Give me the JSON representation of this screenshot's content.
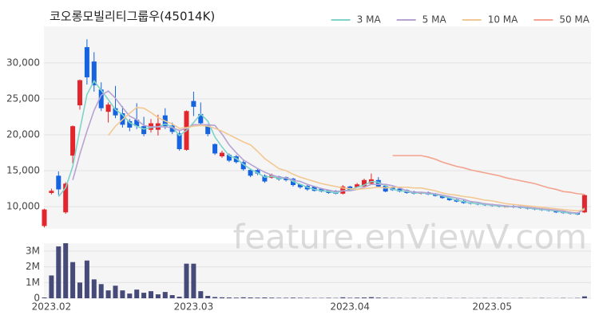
{
  "chart_data": {
    "type": "candlestick",
    "title": "코오롱모빌리티그룹우(45014K)",
    "watermark": "feature.enViewV.com",
    "up_color": "#e3262d",
    "down_color": "#1563df",
    "grid": true,
    "legend": "top-right",
    "categories": [
      null,
      "2023.02",
      null,
      null,
      null,
      null,
      null,
      null,
      null,
      null,
      null,
      null,
      null,
      null,
      null,
      null,
      null,
      null,
      null,
      null,
      null,
      "2023.03",
      null,
      null,
      null,
      null,
      null,
      null,
      null,
      null,
      null,
      null,
      null,
      null,
      null,
      null,
      null,
      null,
      null,
      null,
      null,
      null,
      null,
      "2023.04",
      null,
      null,
      null,
      null,
      null,
      null,
      null,
      null,
      null,
      null,
      null,
      null,
      null,
      null,
      null,
      null,
      null,
      null,
      null,
      "2023.05",
      null,
      null,
      null,
      null,
      null,
      null,
      null,
      null,
      null,
      null,
      null,
      null,
      null
    ],
    "open": [
      7300,
      11900,
      14300,
      9200,
      17100,
      24100,
      32200,
      30200,
      26300,
      23200,
      23700,
      23000,
      21900,
      22100,
      21200,
      20700,
      20700,
      22700,
      21300,
      20200,
      17900,
      24700,
      22900,
      21400,
      18700,
      17000,
      17200,
      17000,
      16200,
      15100,
      15100,
      14300,
      14000,
      14200,
      14100,
      13900,
      13100,
      12900,
      12800,
      12500,
      12300,
      12200,
      11800,
      12800,
      12700,
      12800,
      13200,
      13700,
      12900,
      12700,
      12500,
      12300,
      12100,
      11800,
      12000,
      11800,
      11500,
      11200,
      11000,
      10800,
      10600,
      10500,
      10400,
      10300,
      10200,
      9900,
      10100,
      10000,
      9900,
      9800,
      9700,
      9600,
      9500,
      9300,
      9200,
      9100,
      9200
    ],
    "high": [
      9700,
      12500,
      14900,
      13400,
      21300,
      27700,
      33300,
      31500,
      27300,
      24500,
      26800,
      24000,
      22200,
      24400,
      22500,
      22200,
      22800,
      23700,
      21700,
      20500,
      23400,
      26000,
      24500,
      21500,
      18800,
      17800,
      17400,
      17200,
      16400,
      15300,
      15300,
      14500,
      14600,
      14300,
      14200,
      14000,
      13200,
      13000,
      12900,
      12600,
      12400,
      12300,
      13000,
      12900,
      13300,
      13900,
      14600,
      14100,
      13000,
      12800,
      12600,
      12400,
      12200,
      12000,
      12100,
      11900,
      11600,
      11300,
      11100,
      10900,
      10700,
      10600,
      10500,
      10400,
      10300,
      10100,
      10200,
      10100,
      10000,
      9900,
      9800,
      9700,
      9600,
      9400,
      9300,
      9200,
      11700
    ],
    "low": [
      7100,
      11700,
      11600,
      9000,
      16000,
      23500,
      27000,
      26000,
      23300,
      21700,
      22300,
      21000,
      20500,
      20800,
      19800,
      20300,
      19900,
      20800,
      20100,
      17800,
      17800,
      22600,
      21300,
      19800,
      17200,
      16800,
      16200,
      16000,
      15000,
      14100,
      14400,
      13300,
      13900,
      13600,
      13500,
      12800,
      12500,
      12200,
      12100,
      12000,
      11800,
      11700,
      11700,
      12200,
      12600,
      12700,
      13100,
      12700,
      12000,
      12200,
      12000,
      11800,
      11700,
      11700,
      11600,
      11400,
      11100,
      10800,
      10600,
      10400,
      10300,
      10200,
      10100,
      10000,
      9900,
      9900,
      9800,
      9700,
      9600,
      9500,
      9400,
      9300,
      9100,
      9000,
      8900,
      8800,
      9100
    ],
    "close": [
      9600,
      12200,
      12400,
      13200,
      21200,
      27600,
      28000,
      26900,
      23700,
      24200,
      22700,
      21400,
      21000,
      21200,
      20100,
      21600,
      21600,
      21200,
      20400,
      18000,
      23300,
      23900,
      21600,
      20100,
      17400,
      17500,
      16400,
      16200,
      15200,
      14300,
      14600,
      13500,
      14400,
      13800,
      13700,
      13000,
      12700,
      12400,
      12200,
      12100,
      11900,
      11800,
      12800,
      12300,
      13100,
      13700,
      13800,
      12800,
      12100,
      12300,
      12100,
      11900,
      11800,
      11900,
      11700,
      11500,
      11200,
      10900,
      10700,
      10500,
      10400,
      10300,
      10200,
      10100,
      10000,
      10000,
      9900,
      9800,
      9700,
      9600,
      9500,
      9400,
      9200,
      9100,
      9000,
      8900,
      11600
    ],
    "lines": [
      {
        "name": "3 MA",
        "color": "#7fd3c9",
        "values": [
          null,
          null,
          11400,
          12600,
          15600,
          20700,
          25600,
          27500,
          26200,
          24900,
          23500,
          22800,
          21700,
          21200,
          20800,
          21000,
          21100,
          21500,
          21100,
          19900,
          20600,
          21700,
          22900,
          21900,
          19700,
          18300,
          17100,
          16700,
          15900,
          15200,
          14700,
          14100,
          14200,
          13900,
          14000,
          13500,
          13100,
          12700,
          12400,
          12200,
          12100,
          11900,
          12200,
          12300,
          12700,
          13000,
          13500,
          13400,
          12900,
          12400,
          12200,
          12100,
          11900,
          11900,
          11800,
          11700,
          11500,
          11200,
          10900,
          10700,
          10500,
          10400,
          10300,
          10200,
          10100,
          10000,
          10000,
          9900,
          9800,
          9700,
          9600,
          9500,
          9400,
          9200,
          9100,
          9000,
          9800
        ]
      },
      {
        "name": "5 MA",
        "color": "#b6a3d4",
        "values": [
          null,
          null,
          null,
          null,
          13700,
          17300,
          20500,
          23400,
          25500,
          26100,
          25100,
          23800,
          22600,
          22100,
          21300,
          21100,
          21100,
          21100,
          21000,
          20600,
          20900,
          21400,
          21400,
          21400,
          21300,
          20100,
          18600,
          17500,
          16500,
          15900,
          15300,
          14800,
          14400,
          14100,
          14000,
          13700,
          13500,
          13100,
          12800,
          12500,
          12300,
          12100,
          12200,
          12200,
          12400,
          12700,
          13100,
          13100,
          13100,
          12900,
          12600,
          12200,
          12000,
          12000,
          11900,
          11800,
          11600,
          11400,
          11200,
          11000,
          10700,
          10600,
          10400,
          10300,
          10200,
          10100,
          10000,
          10000,
          9900,
          9800,
          9700,
          9600,
          9500,
          9400,
          9200,
          9100,
          9600
        ]
      },
      {
        "name": "10 MA",
        "color": "#f2c993",
        "values": [
          null,
          null,
          null,
          null,
          null,
          null,
          null,
          null,
          null,
          19900,
          21200,
          22100,
          23000,
          23800,
          23700,
          23100,
          22400,
          21900,
          21500,
          20900,
          21000,
          21200,
          21300,
          21200,
          20900,
          20500,
          20000,
          19500,
          19000,
          18600,
          17700,
          16700,
          16000,
          15300,
          15000,
          14500,
          14100,
          13800,
          13500,
          13200,
          13000,
          12800,
          12600,
          12500,
          12400,
          12500,
          12600,
          12700,
          12600,
          12700,
          12700,
          12700,
          12600,
          12600,
          12400,
          12200,
          11900,
          11700,
          11600,
          11400,
          11300,
          11100,
          10900,
          10800,
          10600,
          10400,
          10300,
          10200,
          10100,
          10000,
          9900,
          9800,
          9700,
          9600,
          9500,
          9400,
          9600
        ]
      },
      {
        "name": "50 MA",
        "color": "#f3a38f",
        "values": [
          null,
          null,
          null,
          null,
          null,
          null,
          null,
          null,
          null,
          null,
          null,
          null,
          null,
          null,
          null,
          null,
          null,
          null,
          null,
          null,
          null,
          null,
          null,
          null,
          null,
          null,
          null,
          null,
          null,
          null,
          null,
          null,
          null,
          null,
          null,
          null,
          null,
          null,
          null,
          null,
          null,
          null,
          null,
          null,
          null,
          null,
          null,
          null,
          null,
          17100,
          17100,
          17100,
          17100,
          17100,
          16900,
          16600,
          16200,
          15900,
          15600,
          15400,
          15100,
          14900,
          14700,
          14500,
          14300,
          14000,
          13800,
          13600,
          13400,
          13200,
          12900,
          12600,
          12400,
          12100,
          12000,
          11800,
          11700
        ]
      }
    ],
    "ylim": [
      6900,
      35100
    ],
    "yticks": [
      {
        "value": 10000,
        "label": "10,000"
      },
      {
        "value": 15000,
        "label": "15,000"
      },
      {
        "value": 20000,
        "label": "20,000"
      },
      {
        "value": 25000,
        "label": "25,000"
      },
      {
        "value": 30000,
        "label": "30,000"
      }
    ],
    "volume": {
      "color": "#464a78",
      "values": [
        50000,
        1450000,
        3300000,
        3500000,
        2300000,
        1000000,
        2400000,
        1200000,
        900000,
        500000,
        800000,
        500000,
        300000,
        550000,
        350000,
        450000,
        250000,
        400000,
        200000,
        100000,
        2200000,
        2200000,
        450000,
        150000,
        80000,
        60000,
        50000,
        40000,
        60000,
        50000,
        40000,
        50000,
        40000,
        30000,
        30000,
        40000,
        30000,
        30000,
        20000,
        20000,
        30000,
        20000,
        60000,
        30000,
        40000,
        50000,
        70000,
        40000,
        30000,
        20000,
        20000,
        10000,
        20000,
        10000,
        20000,
        20000,
        10000,
        20000,
        10000,
        20000,
        10000,
        10000,
        20000,
        10000,
        20000,
        10000,
        10000,
        20000,
        10000,
        10000,
        20000,
        10000,
        10000,
        20000,
        10000,
        20000,
        120000
      ],
      "ylim": [
        0,
        3500000
      ],
      "yticks": [
        0,
        {
          "value": 1000000,
          "label": "1M"
        },
        {
          "value": 2000000,
          "label": "2M"
        },
        {
          "value": 3000000,
          "label": "3M"
        }
      ]
    }
  }
}
